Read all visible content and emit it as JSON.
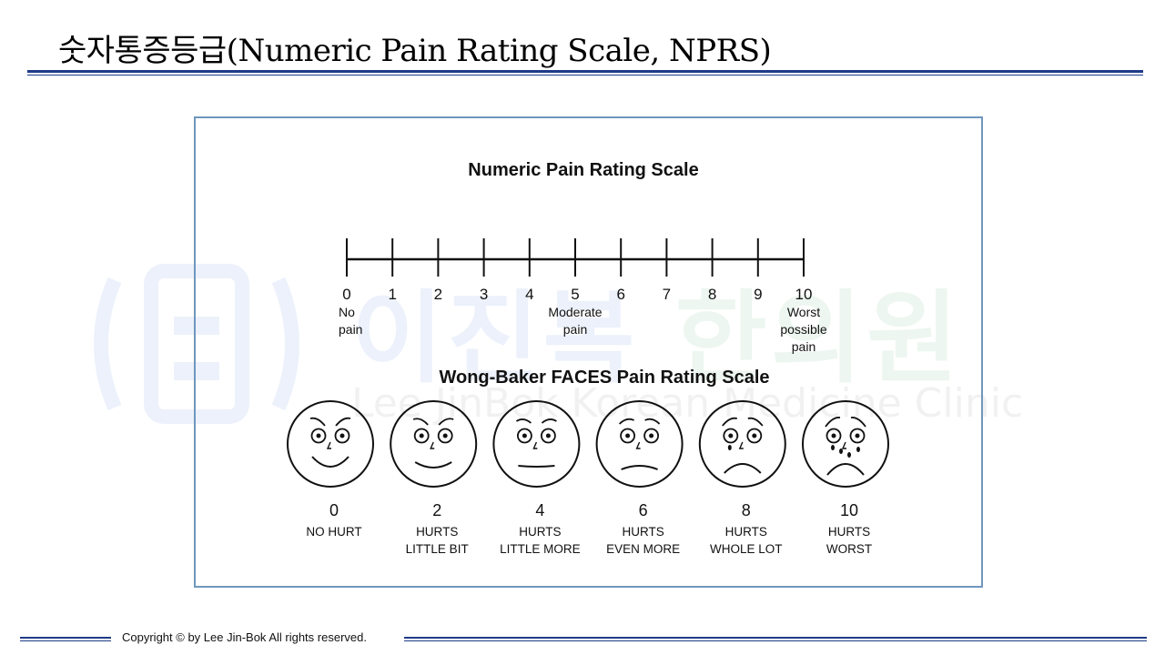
{
  "slide": {
    "title": "숫자통증등급(Numeric Pain Rating Scale, NPRS)"
  },
  "watermark": {
    "name_blue": "이진복",
    "name_green": "한의원",
    "subtitle": "Lee JinBok Korean Medicine Clinic"
  },
  "figure": {
    "nprs": {
      "title": "Numeric Pain Rating Scale",
      "ticks": [
        "0",
        "1",
        "2",
        "3",
        "4",
        "5",
        "6",
        "7",
        "8",
        "9",
        "10"
      ],
      "anchors": [
        {
          "at": "0",
          "lines": [
            "No",
            "pain"
          ]
        },
        {
          "at": "5",
          "lines": [
            "Moderate",
            "pain"
          ]
        },
        {
          "at": "10",
          "lines": [
            "Worst",
            "possible",
            "pain"
          ]
        }
      ]
    },
    "faces": {
      "title": "Wong-Baker FACES Pain Rating Scale",
      "items": [
        {
          "score": "0",
          "line1": "NO HURT",
          "line2": ""
        },
        {
          "score": "2",
          "line1": "HURTS",
          "line2": "LITTLE BIT"
        },
        {
          "score": "4",
          "line1": "HURTS",
          "line2": "LITTLE MORE"
        },
        {
          "score": "6",
          "line1": "HURTS",
          "line2": "EVEN MORE"
        },
        {
          "score": "8",
          "line1": "HURTS",
          "line2": "WHOLE LOT"
        },
        {
          "score": "10",
          "line1": "HURTS",
          "line2": "WORST"
        }
      ]
    }
  },
  "footer": {
    "copyright": "Copyright © by Lee Jin-Bok  All rights reserved."
  },
  "colors": {
    "rule": "#1f3b87",
    "frame": "#6f97bd"
  }
}
